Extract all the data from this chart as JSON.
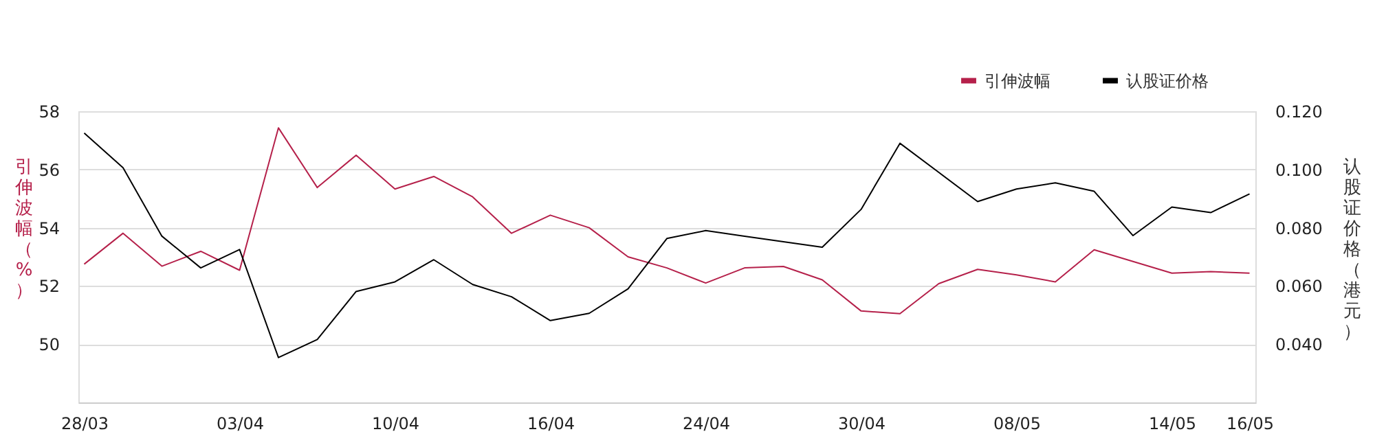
{
  "chart_data": {
    "type": "line",
    "categories": [
      "28/03",
      null,
      null,
      null,
      "03/04",
      null,
      null,
      null,
      "10/04",
      null,
      null,
      null,
      "16/04",
      null,
      null,
      null,
      "24/04",
      null,
      null,
      null,
      "30/04",
      null,
      null,
      null,
      "08/05",
      null,
      null,
      null,
      "14/05",
      null,
      "16/05"
    ],
    "series": [
      {
        "name": "引伸波幅",
        "color": "#b5204a",
        "values": [
          52.75,
          53.81,
          52.68,
          53.19,
          52.54,
          57.43,
          55.38,
          56.49,
          55.33,
          55.76,
          55.06,
          53.81,
          54.43,
          54.0,
          53.0,
          52.62,
          52.1,
          52.62,
          52.67,
          52.21,
          51.14,
          51.05,
          52.08,
          52.57,
          52.38,
          52.14,
          53.24,
          52.84,
          52.44,
          52.49,
          52.44
        ]
      },
      {
        "name": "认股证价格",
        "color": "#000000",
        "axis": "y2",
        "values": [
          0.1125,
          0.1006,
          0.0771,
          0.0662,
          0.0725,
          0.0354,
          0.0416,
          0.0581,
          0.0614,
          0.069,
          0.0605,
          0.0563,
          0.0481,
          0.0506,
          0.059,
          0.0763,
          0.079,
          0.0771,
          0.0752,
          0.0733,
          0.0863,
          0.109,
          0.099,
          0.089,
          0.0933,
          0.0954,
          0.0925,
          0.0773,
          0.0871,
          0.0852,
          0.0916
        ]
      }
    ],
    "ylabel": "引伸波幅（%）",
    "y2label": "认股证价格（港元）",
    "ylim": [
      48,
      58
    ],
    "yticks": [
      50,
      52,
      54,
      56,
      58
    ],
    "y2lim": [
      0.02,
      0.12
    ],
    "y2ticks": [
      {
        "value": 0.04,
        "label": "0.040"
      },
      {
        "value": 0.06,
        "label": "0.060"
      },
      {
        "value": 0.08,
        "label": "0.080"
      },
      {
        "value": 0.1,
        "label": "0.100"
      },
      {
        "value": 0.12,
        "label": "0.120"
      }
    ],
    "grid": "y",
    "legend": "top right",
    "marker": "none",
    "line_style": "solid"
  }
}
